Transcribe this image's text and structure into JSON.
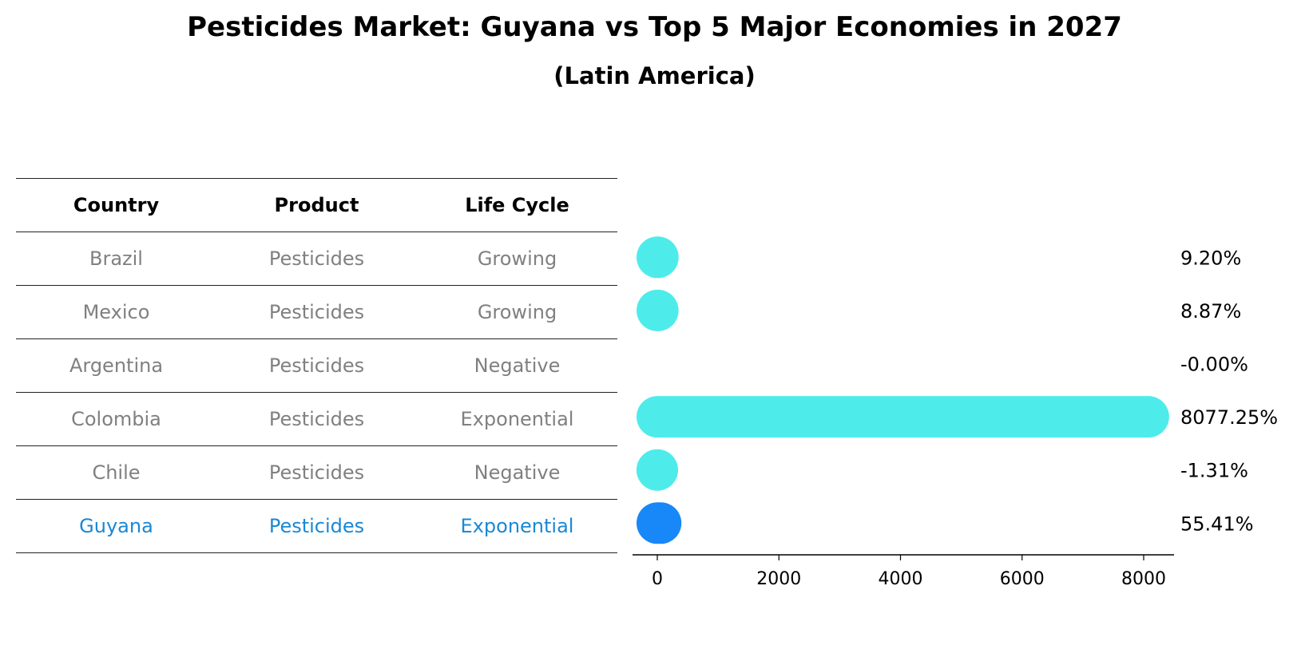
{
  "title": "Pesticides Market: Guyana vs Top 5 Major Economies in 2027",
  "subtitle": "(Latin America)",
  "table": {
    "headers": [
      "Country",
      "Product",
      "Life Cycle"
    ],
    "rows": [
      {
        "country": "Brazil",
        "product": "Pesticides",
        "life_cycle": "Growing"
      },
      {
        "country": "Mexico",
        "product": "Pesticides",
        "life_cycle": "Growing"
      },
      {
        "country": "Argentina",
        "product": "Pesticides",
        "life_cycle": "Negative"
      },
      {
        "country": "Colombia",
        "product": "Pesticides",
        "life_cycle": "Exponential"
      },
      {
        "country": "Chile",
        "product": "Pesticides",
        "life_cycle": "Negative"
      },
      {
        "country": "Guyana",
        "product": "Pesticides",
        "life_cycle": "Exponential"
      }
    ]
  },
  "chart_data": {
    "type": "bar",
    "orientation": "horizontal",
    "categories": [
      "Brazil",
      "Mexico",
      "Argentina",
      "Colombia",
      "Chile",
      "Guyana"
    ],
    "values": [
      9.2,
      8.87,
      -0.0,
      8077.25,
      -1.31,
      55.41
    ],
    "labels": [
      "9.20%",
      "8.87%",
      "-0.00%",
      "8077.25%",
      "-1.31%",
      "55.41%"
    ],
    "highlight": "Guyana",
    "xlim": [
      -400,
      8500
    ],
    "xticks": [
      0,
      2000,
      4000,
      6000,
      8000
    ],
    "xticklabels": [
      "0",
      "2000",
      "4000",
      "6000",
      "8000"
    ],
    "colors": {
      "default": "#4deceb",
      "highlight": "#1887f7"
    }
  }
}
